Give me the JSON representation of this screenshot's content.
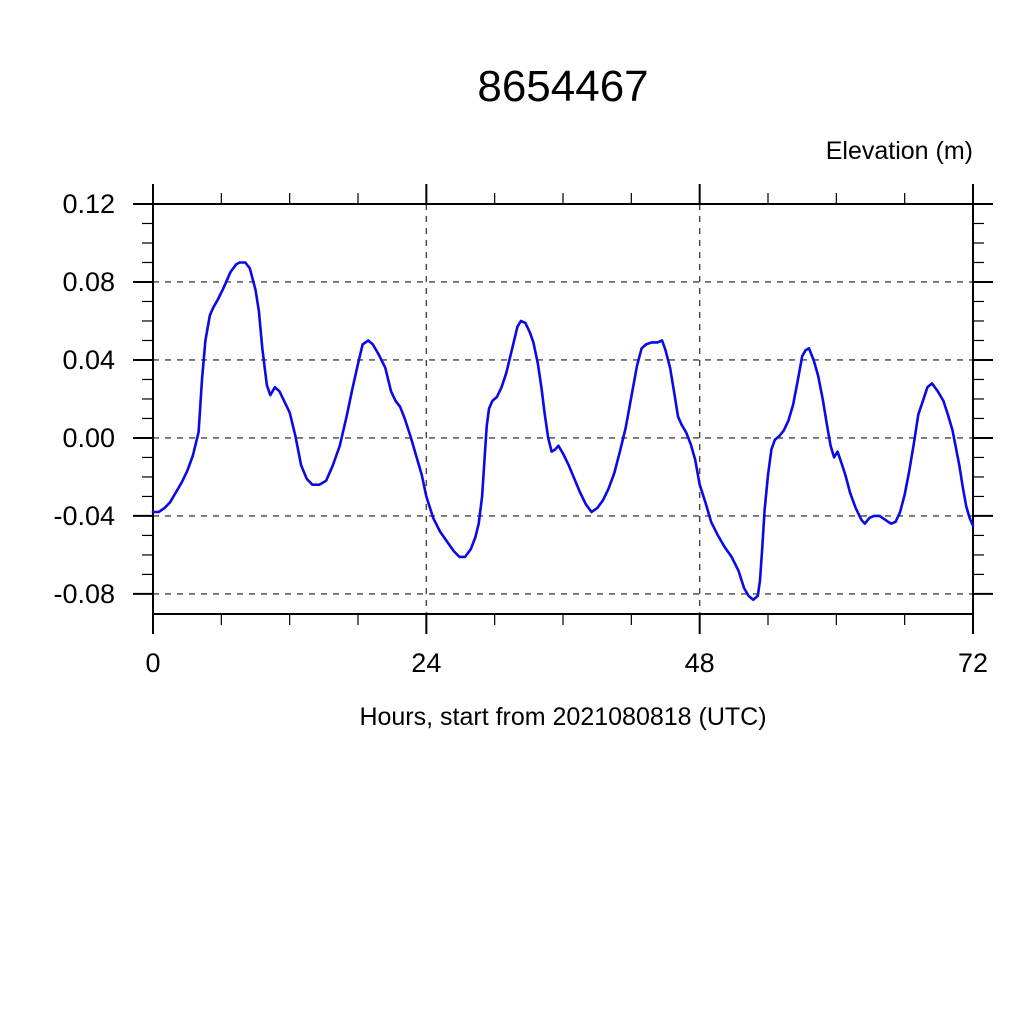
{
  "title": "8654467",
  "labels": {
    "right_axis": "Elevation (m)",
    "x_axis": "Hours, start from 2021080818 (UTC)"
  },
  "colors": {
    "line": "#0a0ae6",
    "grid": "#444444",
    "axis": "#000000",
    "background": "#ffffff"
  },
  "chart_data": {
    "type": "line",
    "title": "8654467",
    "xlabel": "Hours, start from 2021080818 (UTC)",
    "ylabel": "Elevation (m)",
    "xlim": [
      0,
      72
    ],
    "ylim": [
      -0.0903,
      0.12
    ],
    "x_major_ticks": [
      0,
      24,
      48,
      72
    ],
    "x_minor_tick_step": 6,
    "y_major_ticks": [
      0.12,
      0.08,
      0.04,
      0.0,
      -0.04,
      -0.08
    ],
    "y_minor_tick_step": 0.01,
    "grid": "dashed lines at major ticks, boxed frame with outward ticks",
    "legend": "none",
    "series": [
      {
        "name": "elevation_m",
        "x": [
          0,
          0.5,
          1,
          1.5,
          2,
          2.5,
          3,
          3.5,
          4,
          4.3,
          4.6,
          5,
          5.3,
          5.7,
          6.2,
          6.8,
          7.3,
          7.6,
          8.1,
          8.5,
          9,
          9.3,
          9.6,
          10,
          10.3,
          10.7,
          11.1,
          11.6,
          12,
          12.5,
          13,
          13.5,
          14,
          14.6,
          15.2,
          15.8,
          16.4,
          17,
          17.5,
          18,
          18.4,
          18.9,
          19.3,
          19.8,
          20.4,
          20.9,
          21.3,
          21.7,
          22.1,
          22.6,
          23.1,
          23.6,
          24,
          24.6,
          25.2,
          25.8,
          26.4,
          26.9,
          27.4,
          27.9,
          28.3,
          28.6,
          28.9,
          29.1,
          29.3,
          29.5,
          29.8,
          30.2,
          30.6,
          31,
          31.5,
          32,
          32.3,
          32.7,
          33.1,
          33.4,
          33.8,
          34.1,
          34.4,
          34.7,
          35,
          35.3,
          35.6,
          36,
          36.5,
          37,
          37.5,
          38,
          38.5,
          39,
          39.5,
          40,
          40.5,
          41,
          41.5,
          42,
          42.5,
          42.9,
          43.3,
          43.8,
          44.3,
          44.7,
          45,
          45.4,
          45.8,
          46.1,
          46.4,
          46.8,
          47.2,
          47.6,
          48,
          48.5,
          49,
          49.6,
          50.2,
          50.8,
          51.4,
          51.9,
          52.3,
          52.7,
          53.1,
          53.3,
          53.5,
          53.7,
          54,
          54.3,
          54.6,
          55,
          55.4,
          55.8,
          56.2,
          56.6,
          57,
          57.3,
          57.6,
          58,
          58.4,
          58.8,
          59.2,
          59.5,
          59.8,
          60.1,
          60.4,
          60.8,
          61.2,
          61.7,
          62.2,
          62.5,
          62.9,
          63.3,
          63.8,
          64.3,
          64.8,
          65.2,
          65.6,
          66,
          66.4,
          66.8,
          67.2,
          67.6,
          68,
          68.4,
          68.9,
          69.4,
          69.8,
          70.2,
          70.5,
          70.8,
          71.1,
          71.4,
          71.7,
          72
        ],
        "y": [
          -0.038,
          -0.038,
          -0.036,
          -0.033,
          -0.028,
          -0.023,
          -0.017,
          -0.009,
          0.003,
          0.03,
          0.05,
          0.063,
          0.067,
          0.071,
          0.077,
          0.085,
          0.089,
          0.09,
          0.09,
          0.087,
          0.076,
          0.065,
          0.046,
          0.027,
          0.022,
          0.026,
          0.024,
          0.018,
          0.013,
          0.001,
          -0.014,
          -0.021,
          -0.024,
          -0.024,
          -0.022,
          -0.014,
          -0.004,
          0.011,
          0.025,
          0.038,
          0.048,
          0.05,
          0.048,
          0.043,
          0.036,
          0.024,
          0.019,
          0.016,
          0.01,
          0.001,
          -0.009,
          -0.019,
          -0.03,
          -0.041,
          -0.048,
          -0.053,
          -0.058,
          -0.061,
          -0.061,
          -0.057,
          -0.051,
          -0.044,
          -0.03,
          -0.012,
          0.006,
          0.015,
          0.019,
          0.021,
          0.026,
          0.033,
          0.045,
          0.057,
          0.06,
          0.059,
          0.054,
          0.049,
          0.038,
          0.026,
          0.012,
          0.0,
          -0.007,
          -0.006,
          -0.004,
          -0.008,
          -0.014,
          -0.021,
          -0.028,
          -0.034,
          -0.038,
          -0.036,
          -0.032,
          -0.026,
          -0.018,
          -0.007,
          0.005,
          0.021,
          0.037,
          0.046,
          0.048,
          0.049,
          0.049,
          0.05,
          0.045,
          0.036,
          0.022,
          0.011,
          0.007,
          0.003,
          -0.003,
          -0.011,
          -0.024,
          -0.033,
          -0.043,
          -0.05,
          -0.056,
          -0.061,
          -0.068,
          -0.077,
          -0.081,
          -0.083,
          -0.081,
          -0.073,
          -0.056,
          -0.037,
          -0.019,
          -0.006,
          -0.001,
          0.001,
          0.004,
          0.009,
          0.017,
          0.029,
          0.042,
          0.045,
          0.046,
          0.04,
          0.032,
          0.02,
          0.006,
          -0.004,
          -0.01,
          -0.007,
          -0.012,
          -0.019,
          -0.028,
          -0.036,
          -0.042,
          -0.044,
          -0.041,
          -0.04,
          -0.04,
          -0.042,
          -0.044,
          -0.043,
          -0.038,
          -0.029,
          -0.017,
          -0.003,
          0.012,
          0.019,
          0.026,
          0.028,
          0.024,
          0.019,
          0.012,
          0.004,
          -0.005,
          -0.014,
          -0.025,
          -0.035,
          -0.041,
          -0.045
        ]
      }
    ]
  }
}
